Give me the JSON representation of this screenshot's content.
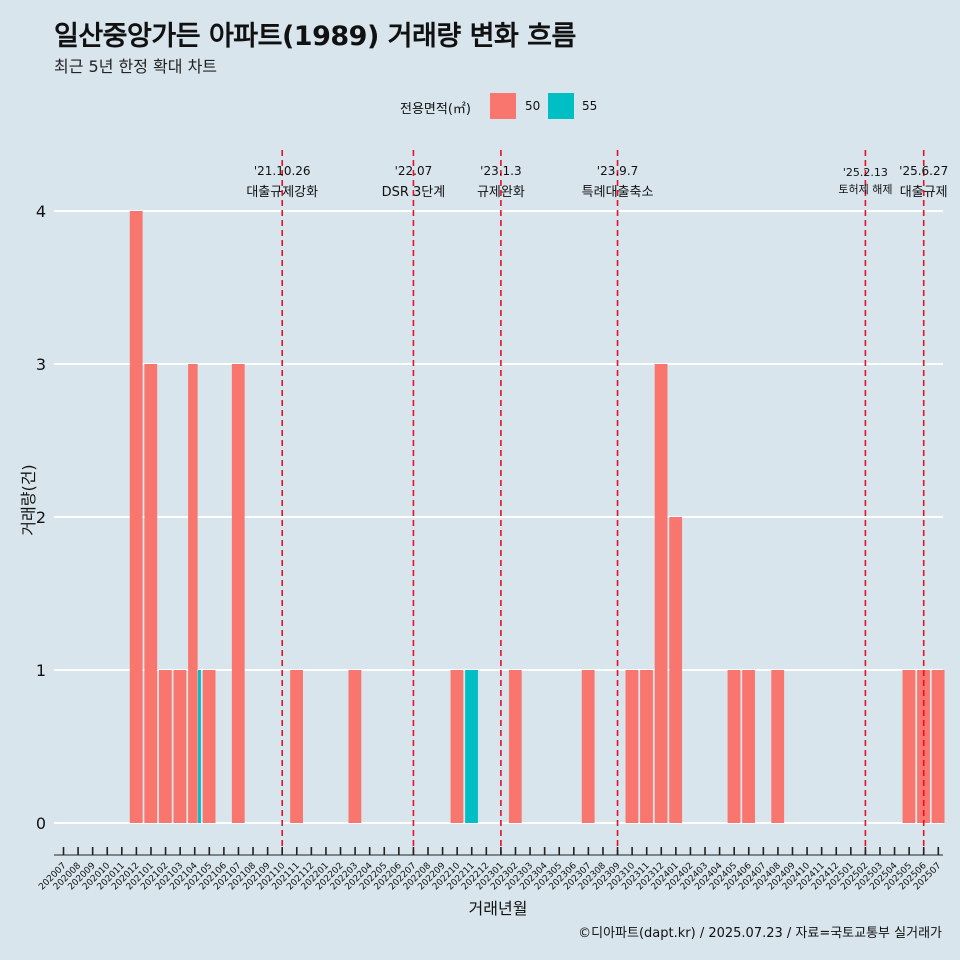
{
  "title": "일산중앙가든 아파트(1989) 거래량 변화 흐름",
  "subtitle": "최근 5년 한정 확대 차트",
  "footer": "©디아파트(dapt.kr) / 2025.07.23 / 자료=국토교통부 실거래가",
  "legend": {
    "title": "전용면적(㎡)",
    "items": [
      {
        "label": "50",
        "color": "#f8766d"
      },
      {
        "label": "55",
        "color": "#00bfc4"
      }
    ]
  },
  "chart_data": {
    "type": "bar",
    "xlabel": "거래년월",
    "ylabel": "거래량(건)",
    "ylim": [
      0,
      4
    ],
    "yticks": [
      0,
      1,
      2,
      3,
      4
    ],
    "grid": true,
    "legend_position": "top",
    "categories": [
      "202007",
      "202008",
      "202009",
      "202010",
      "202011",
      "202012",
      "202101",
      "202102",
      "202103",
      "202104",
      "202105",
      "202106",
      "202107",
      "202108",
      "202109",
      "202110",
      "202111",
      "202112",
      "202201",
      "202202",
      "202203",
      "202204",
      "202205",
      "202206",
      "202207",
      "202208",
      "202209",
      "202210",
      "202211",
      "202212",
      "202301",
      "202302",
      "202303",
      "202304",
      "202305",
      "202306",
      "202307",
      "202308",
      "202309",
      "202310",
      "202311",
      "202312",
      "202401",
      "202402",
      "202403",
      "202404",
      "202405",
      "202406",
      "202407",
      "202408",
      "202409",
      "202410",
      "202411",
      "202412",
      "202501",
      "202502",
      "202503",
      "202504",
      "202505",
      "202506",
      "202507"
    ],
    "series": [
      {
        "name": "50",
        "color": "#f8766d",
        "values": [
          0,
          0,
          0,
          0,
          0,
          4,
          3,
          1,
          1,
          3,
          1,
          0,
          3,
          0,
          0,
          0,
          1,
          0,
          0,
          0,
          1,
          0,
          0,
          0,
          0,
          0,
          0,
          1,
          0,
          0,
          0,
          1,
          0,
          0,
          0,
          0,
          1,
          0,
          0,
          1,
          1,
          3,
          2,
          0,
          0,
          0,
          1,
          1,
          0,
          1,
          0,
          0,
          0,
          0,
          0,
          0,
          0,
          0,
          1,
          1,
          1
        ]
      },
      {
        "name": "55",
        "color": "#00bfc4",
        "values": [
          0,
          0,
          0,
          0,
          0,
          0,
          0,
          0,
          0,
          1,
          0,
          0,
          0,
          0,
          0,
          0,
          0,
          0,
          0,
          0,
          0,
          0,
          0,
          0,
          0,
          0,
          0,
          0,
          1,
          0,
          0,
          0,
          0,
          0,
          0,
          0,
          0,
          0,
          0,
          0,
          0,
          0,
          0,
          0,
          0,
          0,
          0,
          0,
          0,
          0,
          0,
          0,
          0,
          0,
          0,
          0,
          0,
          0,
          0,
          0,
          0
        ]
      }
    ],
    "annotations": [
      {
        "x": "202110",
        "date": "'21.10.26",
        "label": "대출규제강화"
      },
      {
        "x": "202207",
        "date": "'22.07",
        "label": "DSR 3단계"
      },
      {
        "x": "202301",
        "date": "'23.1.3",
        "label": "규제완화"
      },
      {
        "x": "202309",
        "date": "'23.9.7",
        "label": "특례대출축소"
      },
      {
        "x": "202502",
        "date": "'25.2.13",
        "label": "토허제 해제"
      },
      {
        "x": "202506",
        "date": "'25.6.27",
        "label": "대출규제"
      }
    ]
  }
}
